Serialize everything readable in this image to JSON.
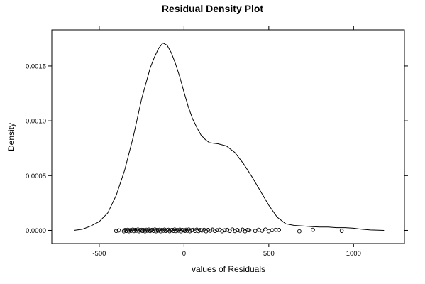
{
  "chart_data": {
    "type": "line",
    "title": "Residual Density Plot",
    "xlabel": "values of Residuals",
    "ylabel": "Density",
    "xlim": [
      -780,
      1300
    ],
    "ylim": [
      -0.00012,
      0.00183
    ],
    "x_ticks": [
      -500,
      0,
      500,
      1000
    ],
    "x_tick_labels": [
      "-500",
      "0",
      "500",
      "1000"
    ],
    "y_ticks": [
      0.0,
      0.0005,
      0.001,
      0.0015
    ],
    "y_tick_labels": [
      "0.0000",
      "0.0005",
      "0.0010",
      "0.0015"
    ],
    "grid": false,
    "legend": "none",
    "series": [
      {
        "x": [
          -650,
          -600,
          -550,
          -500,
          -450,
          -400,
          -350,
          -300,
          -250,
          -200,
          -175,
          -150,
          -125,
          -100,
          -75,
          -50,
          -25,
          0,
          25,
          50,
          75,
          100,
          125,
          150,
          200,
          250,
          300,
          350,
          400,
          450,
          500,
          550,
          600,
          650,
          700,
          750,
          800,
          850,
          900,
          950,
          1000,
          1050,
          1100,
          1150,
          1180
        ],
        "y": [
          0.0,
          1e-05,
          4e-05,
          8e-05,
          0.00016,
          0.00032,
          0.00055,
          0.00085,
          0.0012,
          0.00148,
          0.00158,
          0.00166,
          0.00171,
          0.00169,
          0.00162,
          0.00152,
          0.0014,
          0.00126,
          0.00113,
          0.00102,
          0.00094,
          0.00087,
          0.00083,
          0.0008,
          0.00079,
          0.00077,
          0.00071,
          0.00061,
          0.00049,
          0.00036,
          0.00023,
          0.00012,
          6e-05,
          4.5e-05,
          4e-05,
          3.5e-05,
          3e-05,
          3e-05,
          2.5e-05,
          2.5e-05,
          2e-05,
          1e-05,
          4e-06,
          1e-06,
          0.0
        ]
      }
    ],
    "rug": {
      "marker": "open-circle",
      "x": [
        -400,
        -385,
        -355,
        -348,
        -340,
        -332,
        -325,
        -318,
        -310,
        -302,
        -295,
        -288,
        -280,
        -272,
        -265,
        -258,
        -250,
        -245,
        -238,
        -230,
        -222,
        -215,
        -208,
        -200,
        -195,
        -188,
        -180,
        -172,
        -165,
        -160,
        -152,
        -145,
        -138,
        -130,
        -122,
        -115,
        -108,
        -100,
        -92,
        -85,
        -78,
        -70,
        -62,
        -55,
        -48,
        -40,
        -32,
        -25,
        -18,
        -10,
        -2,
        5,
        12,
        20,
        28,
        35,
        45,
        55,
        65,
        75,
        85,
        95,
        105,
        118,
        130,
        142,
        155,
        168,
        182,
        195,
        210,
        225,
        240,
        255,
        270,
        285,
        300,
        315,
        330,
        345,
        360,
        375,
        385,
        420,
        440,
        460,
        480,
        500,
        520,
        540,
        560,
        680,
        760,
        930
      ],
      "y": [
        -5e-06,
        0.0,
        -8e-06,
        3e-06,
        -4e-06,
        6e-06,
        -7e-06,
        2e-06,
        -3e-06,
        7e-06,
        -6e-06,
        4e-06,
        -2e-06,
        8e-06,
        -7e-06,
        1e-06,
        5e-06,
        -5e-06,
        3e-06,
        -8e-06,
        6e-06,
        -2e-06,
        7e-06,
        -6e-06,
        2e-06,
        5e-06,
        -4e-06,
        8e-06,
        -7e-06,
        3e-06,
        -1e-06,
        6e-06,
        -8e-06,
        4e-06,
        -3e-06,
        7e-06,
        -5e-06,
        2e-06,
        6e-06,
        -7e-06,
        1e-06,
        5e-06,
        -4e-06,
        8e-06,
        -6e-06,
        3e-06,
        -2e-06,
        7e-06,
        -8e-06,
        4e-06,
        1e-06,
        -5e-06,
        6e-06,
        -3e-06,
        8e-06,
        -7e-06,
        2e-06,
        5e-06,
        -4e-06,
        7e-06,
        -6e-06,
        3e-06,
        -1e-06,
        6e-06,
        -8e-06,
        4e-06,
        -3e-06,
        7e-06,
        -5e-06,
        2e-06,
        6e-06,
        -7e-06,
        1e-06,
        5e-06,
        -4e-06,
        8e-06,
        -6e-06,
        3e-06,
        -2e-06,
        7e-06,
        -8e-06,
        4e-06,
        1e-06,
        -5e-06,
        6e-06,
        -3e-06,
        8e-06,
        -7e-06,
        2e-06,
        5e-06,
        4e-06,
        -8e-06,
        6e-06,
        -4e-06
      ]
    }
  }
}
